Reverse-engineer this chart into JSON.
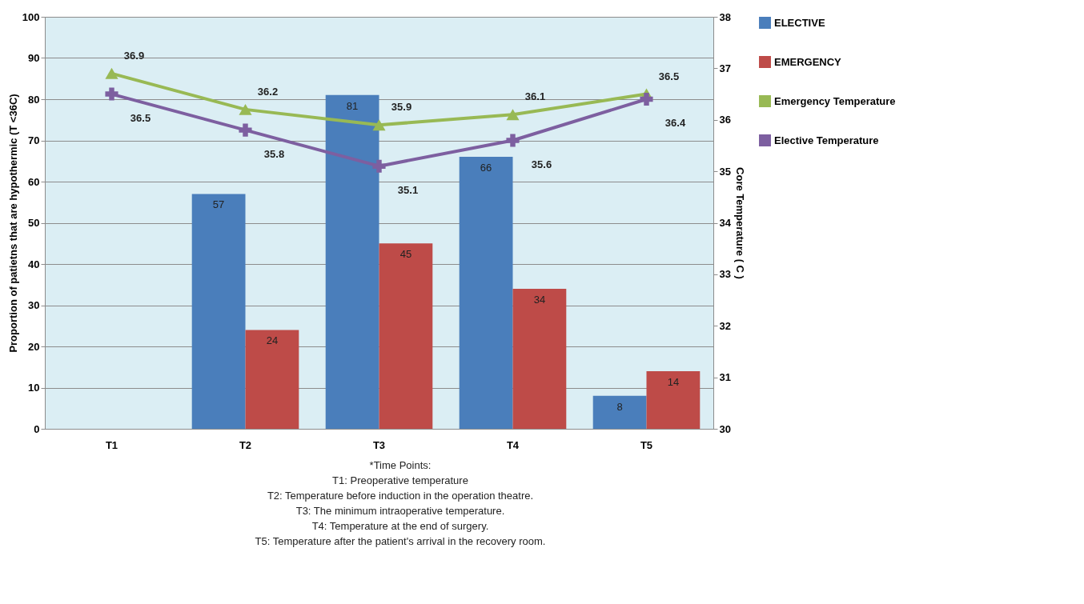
{
  "chart_data": {
    "type": "bar",
    "categories": [
      "T1",
      "T2",
      "T3",
      "T4",
      "T5"
    ],
    "ylabel": "Proportion of patietns that are hypothermic (T <36C)",
    "y2label": "Core Temperature ( C )",
    "ylim": [
      0,
      100
    ],
    "yticks": [
      0,
      10,
      20,
      30,
      40,
      50,
      60,
      70,
      80,
      90,
      100
    ],
    "y2lim": [
      30,
      38
    ],
    "y2ticks": [
      30,
      31,
      32,
      33,
      34,
      35,
      36,
      37,
      38
    ],
    "grid": "y",
    "legend": "right",
    "data_labels": true,
    "series": [
      {
        "name": "ELECTIVE",
        "color": "#4a7ebb",
        "values": [
          null,
          57,
          81,
          66,
          8
        ]
      },
      {
        "name": "EMERGENCY",
        "color": "#be4b48",
        "values": [
          null,
          24,
          45,
          34,
          14
        ]
      },
      {
        "name": "Emergency Temperature",
        "type": "line",
        "axis": "y2",
        "marker": "triangle",
        "color": "#98b954",
        "values": [
          36.9,
          36.2,
          35.9,
          36.1,
          36.5
        ]
      },
      {
        "name": "Elective Temperature",
        "type": "line",
        "axis": "y2",
        "marker": "cross",
        "color": "#7d5fa0",
        "values": [
          36.5,
          35.8,
          35.1,
          35.6,
          36.4
        ]
      }
    ],
    "annotations": [
      "*Time Points:",
      "T1: Preoperative temperature",
      "T2: Temperature before induction in the operation theatre.",
      "T3: The minimum intraoperative temperature.",
      "T4: Temperature at the end of surgery.",
      "T5: Temperature after the patient's arrival in the recovery room."
    ]
  }
}
